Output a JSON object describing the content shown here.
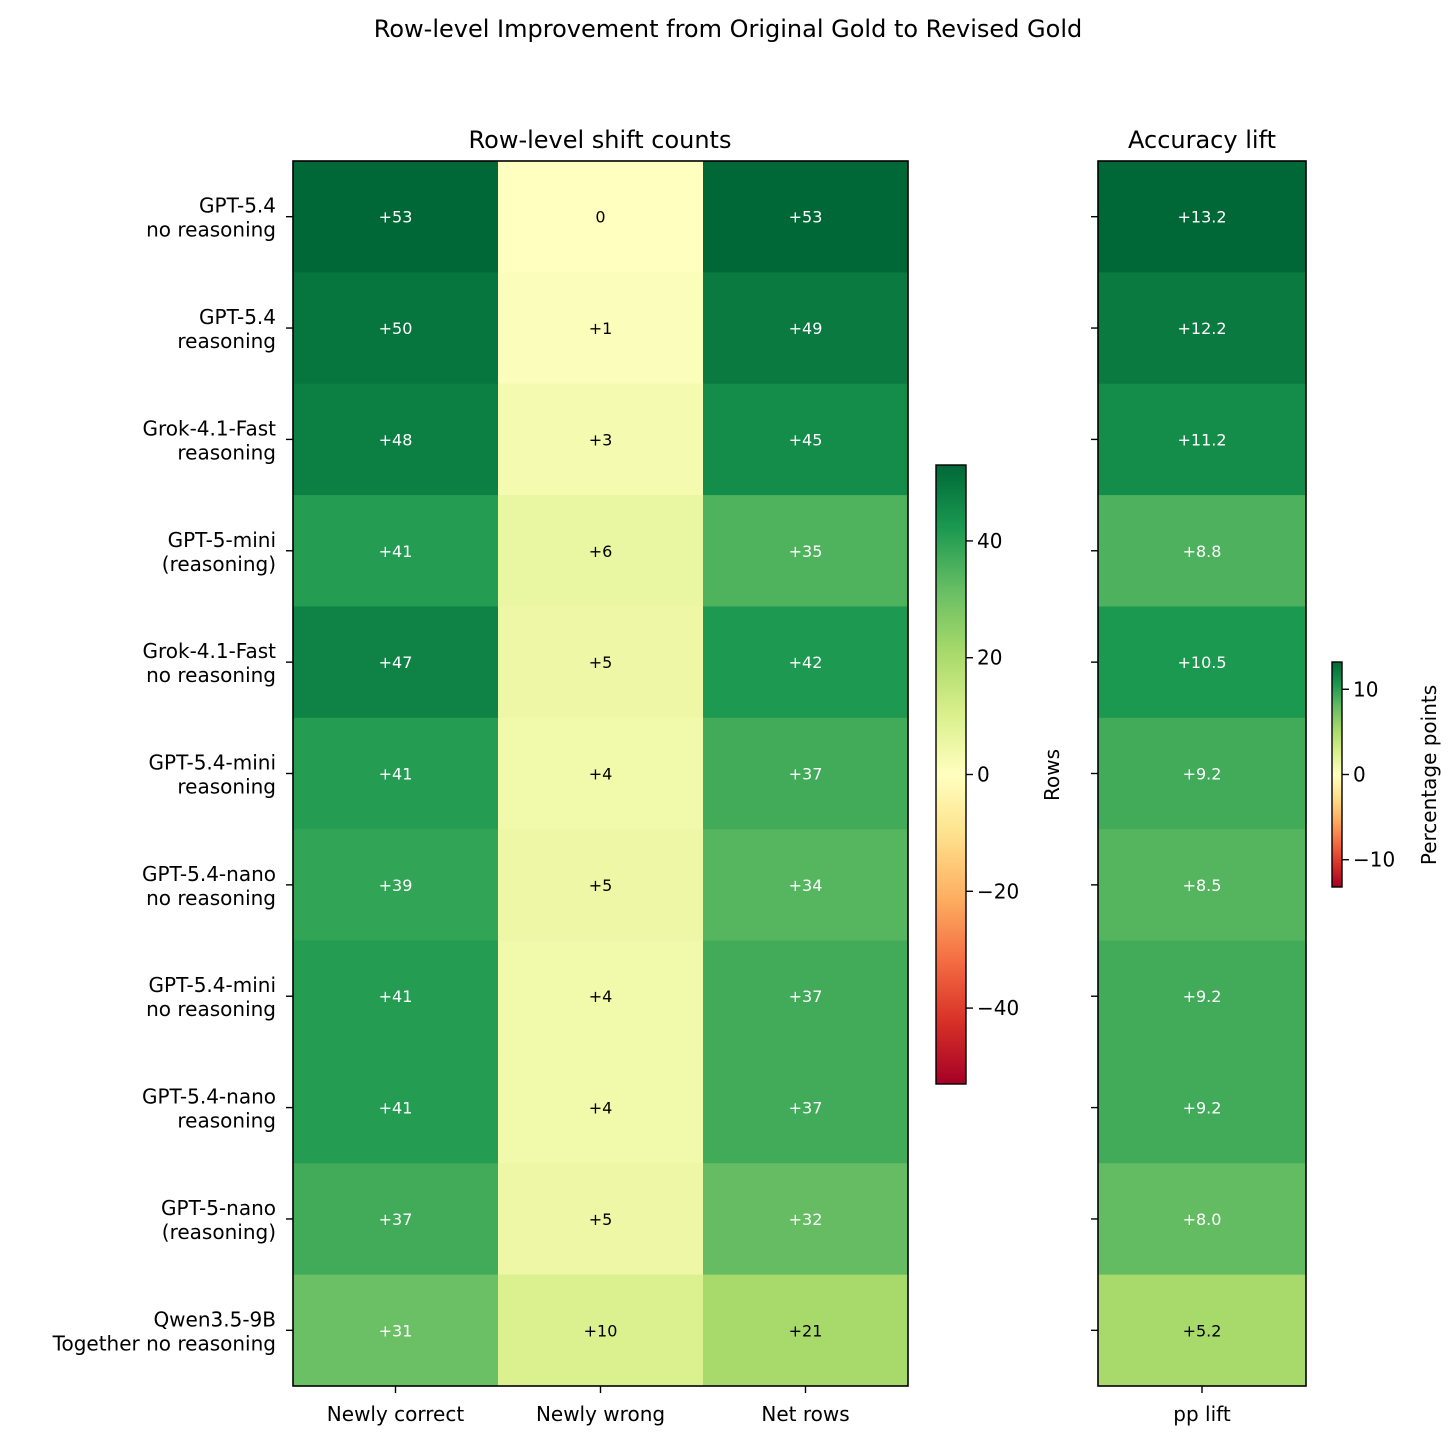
{
  "suptitle": "Row-level Improvement from Original Gold to Revised Gold",
  "chart_data": [
    {
      "type": "heatmap",
      "title": "Row-level shift counts",
      "rows": [
        "GPT-5.4\nno reasoning",
        "GPT-5.4\nreasoning",
        "Grok-4.1-Fast\nreasoning",
        "GPT-5-mini\n(reasoning)",
        "Grok-4.1-Fast\nno reasoning",
        "GPT-5.4-mini\nreasoning",
        "GPT-5.4-nano\nno reasoning",
        "GPT-5.4-mini\nno reasoning",
        "GPT-5.4-nano\nreasoning",
        "GPT-5-nano\n(reasoning)",
        "Qwen3.5-9B\nTogether no reasoning"
      ],
      "columns": [
        "Newly correct",
        "Newly wrong",
        "Net rows"
      ],
      "values": [
        [
          53,
          0,
          53
        ],
        [
          50,
          1,
          49
        ],
        [
          48,
          3,
          45
        ],
        [
          41,
          6,
          35
        ],
        [
          47,
          5,
          42
        ],
        [
          41,
          4,
          37
        ],
        [
          39,
          5,
          34
        ],
        [
          41,
          4,
          37
        ],
        [
          41,
          4,
          37
        ],
        [
          37,
          5,
          32
        ],
        [
          31,
          10,
          21
        ]
      ],
      "cell_labels": [
        [
          "+53",
          "0",
          "+53"
        ],
        [
          "+50",
          "+1",
          "+49"
        ],
        [
          "+48",
          "+3",
          "+45"
        ],
        [
          "+41",
          "+6",
          "+35"
        ],
        [
          "+47",
          "+5",
          "+42"
        ],
        [
          "+41",
          "+4",
          "+37"
        ],
        [
          "+39",
          "+5",
          "+34"
        ],
        [
          "+41",
          "+4",
          "+37"
        ],
        [
          "+41",
          "+4",
          "+37"
        ],
        [
          "+37",
          "+5",
          "+32"
        ],
        [
          "+31",
          "+10",
          "+21"
        ]
      ],
      "colormap": "RdYlGn",
      "vmin": -53,
      "vmax": 53,
      "colorbar": {
        "label": "Rows",
        "ticks": [
          40,
          20,
          0,
          -20,
          -40
        ],
        "tick_labels": [
          "40",
          "20",
          "0",
          "−20",
          "−40"
        ]
      }
    },
    {
      "type": "heatmap",
      "title": "Accuracy lift",
      "columns": [
        "pp lift"
      ],
      "values": [
        [
          13.2
        ],
        [
          12.2
        ],
        [
          11.2
        ],
        [
          8.8
        ],
        [
          10.5
        ],
        [
          9.2
        ],
        [
          8.5
        ],
        [
          9.2
        ],
        [
          9.2
        ],
        [
          8.0
        ],
        [
          5.2
        ]
      ],
      "cell_labels": [
        [
          "+13.2"
        ],
        [
          "+12.2"
        ],
        [
          "+11.2"
        ],
        [
          "+8.8"
        ],
        [
          "+10.5"
        ],
        [
          "+9.2"
        ],
        [
          "+8.5"
        ],
        [
          "+9.2"
        ],
        [
          "+9.2"
        ],
        [
          "+8.0"
        ],
        [
          "+5.2"
        ]
      ],
      "colormap": "RdYlGn",
      "vmin": -13.2,
      "vmax": 13.2,
      "colorbar": {
        "label": "Percentage points",
        "ticks": [
          10,
          0,
          -10
        ],
        "tick_labels": [
          "10",
          "0",
          "−10"
        ]
      }
    }
  ]
}
